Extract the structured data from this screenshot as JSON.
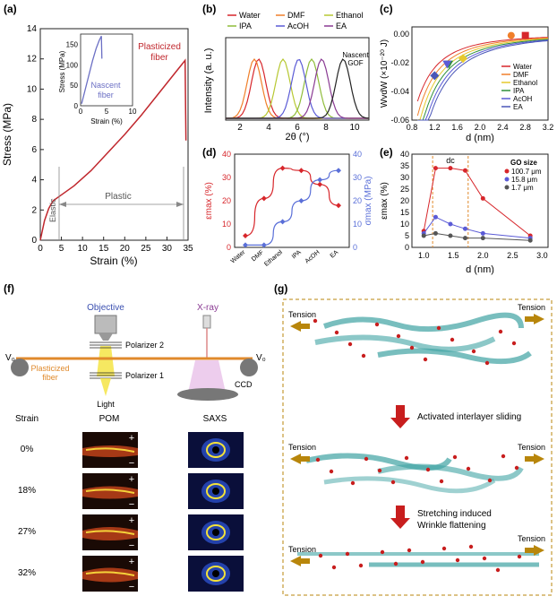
{
  "panel_labels": {
    "a": "(a)",
    "b": "(b)",
    "c": "(c)",
    "d": "(d)",
    "e": "(e)",
    "f": "(f)",
    "g": "(g)"
  },
  "chart_data": [
    {
      "id": "a",
      "type": "line",
      "xlabel": "Strain (%)",
      "ylabel": "Stress (MPa)",
      "xlim": [
        0,
        35
      ],
      "ylim": [
        0,
        14
      ],
      "xticks": [
        0,
        5,
        10,
        15,
        20,
        25,
        30,
        35
      ],
      "yticks": [
        0,
        2,
        4,
        6,
        8,
        10,
        12,
        14
      ],
      "series": [
        {
          "name": "Plasticized fiber",
          "color": "#c0272d",
          "x": [
            0,
            1,
            2,
            3,
            5,
            8,
            12,
            16,
            20,
            24,
            28,
            32,
            34.3,
            34.5
          ],
          "y": [
            0,
            1.3,
            2.1,
            2.6,
            3.0,
            3.6,
            4.6,
            5.8,
            7.0,
            8.3,
            9.7,
            11.1,
            11.9,
            6.6
          ]
        }
      ],
      "annotations": {
        "elastic": "Elastic",
        "plastic": "Plastic",
        "plasticized": "Plasticized\nfiber",
        "nascent": "Nascent\nfiber"
      },
      "inset": {
        "xlabel": "Strain (%)",
        "ylabel": "Stress (MPa)",
        "xlim": [
          0,
          10
        ],
        "ylim": [
          0,
          175
        ],
        "xticks": [
          0,
          5,
          10
        ],
        "yticks": [
          0,
          50,
          100,
          150
        ],
        "series": [
          {
            "name": "Nascent fiber",
            "color": "#6b6fc4",
            "x": [
              0.2,
              0.8,
              1.5,
              2.3,
              3.0,
              3.6,
              4.0,
              4.1
            ],
            "y": [
              5,
              35,
              70,
              110,
              140,
              160,
              170,
              115
            ]
          }
        ]
      }
    },
    {
      "id": "b",
      "type": "line",
      "xlabel": "2θ (°)",
      "ylabel": "Intensity (a. u.)",
      "xlim": [
        1,
        11
      ],
      "xticks": [
        2,
        4,
        6,
        8,
        10
      ],
      "legend": [
        "Water",
        "DMF",
        "Ethanol",
        "IPA",
        "AcOH",
        "EA"
      ],
      "series": [
        {
          "name": "Water",
          "color": "#d7262b",
          "peak": 3.3
        },
        {
          "name": "DMF",
          "color": "#f07f2a",
          "peak": 3.0
        },
        {
          "name": "Ethanol",
          "color": "#b7c832",
          "peak": 5.0
        },
        {
          "name": "IPA",
          "color": "#8fbc3a",
          "peak": 7.0
        },
        {
          "name": "AcOH",
          "color": "#5b5bd6",
          "peak": 6.1
        },
        {
          "name": "EA",
          "color": "#8a3b93",
          "peak": 7.7
        },
        {
          "name": "Nascent GOF",
          "color": "#222222",
          "peak": 9.2
        }
      ],
      "annotation": "Nascent\nGOF"
    },
    {
      "id": "c",
      "type": "line",
      "xlabel": "d (nm)",
      "ylabel": "WvdW (×10⁻²⁰ J)",
      "xlim": [
        0.8,
        3.2
      ],
      "ylim": [
        -0.06,
        0.005
      ],
      "xticks": [
        0.8,
        1.2,
        1.6,
        2.0,
        2.4,
        2.8,
        3.2
      ],
      "yticks": [
        0.0,
        -0.02,
        -0.04,
        -0.06
      ],
      "legend": [
        "Water",
        "DMF",
        "Ethanol",
        "IPA",
        "AcOH",
        "EA"
      ],
      "series": [
        {
          "name": "Water",
          "color": "#d7262b",
          "marker": "square",
          "x": 2.8,
          "y": -0.001
        },
        {
          "name": "DMF",
          "color": "#f07f2a",
          "marker": "circle",
          "x": 2.55,
          "y": -0.001
        },
        {
          "name": "Ethanol",
          "color": "#e6c92e",
          "marker": "diamond",
          "x": 1.7,
          "y": -0.017
        },
        {
          "name": "IPA",
          "color": "#2f8f3a",
          "marker": "triangle",
          "x": 1.45,
          "y": -0.021
        },
        {
          "name": "AcOH",
          "color": "#5b5bd6",
          "marker": "triangle",
          "x": 1.42,
          "y": -0.021
        },
        {
          "name": "EA",
          "color": "#4a56b8",
          "marker": "diamond",
          "x": 1.2,
          "y": -0.029
        }
      ]
    },
    {
      "id": "d",
      "type": "line",
      "categories": [
        "Water",
        "DMF",
        "Ethanol",
        "IPA",
        "AcOH",
        "EA"
      ],
      "ylabel": "εmax (%)",
      "y2label": "σmax (MPa)",
      "ylim": [
        0,
        40
      ],
      "y2lim": [
        0,
        40
      ],
      "yticks": [
        0,
        10,
        20,
        30,
        40
      ],
      "series": [
        {
          "name": "εmax",
          "color": "#d7262b",
          "values": [
            5,
            21,
            34,
            33,
            27,
            18
          ]
        },
        {
          "name": "σmax",
          "color": "#5a6fd8",
          "values": [
            1,
            1,
            11,
            20,
            29,
            33
          ]
        }
      ]
    },
    {
      "id": "e",
      "type": "scatter",
      "xlabel": "d (nm)",
      "ylabel": "εmax (%)",
      "xlim": [
        0.8,
        3.1
      ],
      "ylim": [
        0,
        40
      ],
      "xticks": [
        1.0,
        1.5,
        2.0,
        2.5,
        3.0
      ],
      "yticks": [
        0,
        5,
        10,
        15,
        20,
        25,
        30,
        35,
        40
      ],
      "legend_title": "GO size",
      "dc_label": "dc",
      "series": [
        {
          "name": "100.7 μm",
          "color": "#d7262b",
          "x": [
            1.0,
            1.2,
            1.45,
            1.7,
            2.0,
            2.8
          ],
          "y": [
            7,
            34,
            34,
            33,
            21,
            5
          ]
        },
        {
          "name": "15.8 μm",
          "color": "#5b5bd6",
          "x": [
            1.0,
            1.2,
            1.45,
            1.7,
            2.0,
            2.8
          ],
          "y": [
            6,
            13,
            10,
            8,
            6,
            4
          ]
        },
        {
          "name": "1.7 μm",
          "color": "#555555",
          "x": [
            1.0,
            1.2,
            1.45,
            1.7,
            2.0,
            2.8
          ],
          "y": [
            5,
            6,
            5,
            4,
            4,
            3
          ]
        }
      ]
    }
  ],
  "panel_f": {
    "objective": "Objective",
    "xray": "X-ray",
    "polarizer2": "Polarizer 2",
    "polarizer1": "Polarizer 1",
    "light": "Light",
    "ccd": "CCD",
    "v0_left": "V₀",
    "v0_right": "V₀",
    "fiber_label": "Plasticized\nfiber",
    "headers": [
      "Strain",
      "POM",
      "SAXS"
    ],
    "rows": [
      "0%",
      "18%",
      "27%",
      "32%"
    ],
    "plus": "+",
    "minus": "−"
  },
  "panel_g": {
    "tension": "Tension",
    "step1": "Activated interlayer sliding",
    "step2_line1": "Stretching induced",
    "step2_line2": "Wrinkle flattening"
  },
  "colors": {
    "red": "#d7262b",
    "blue": "#5b5bd6",
    "arrow": "#b8860b",
    "teal": "#3fa3a3"
  }
}
